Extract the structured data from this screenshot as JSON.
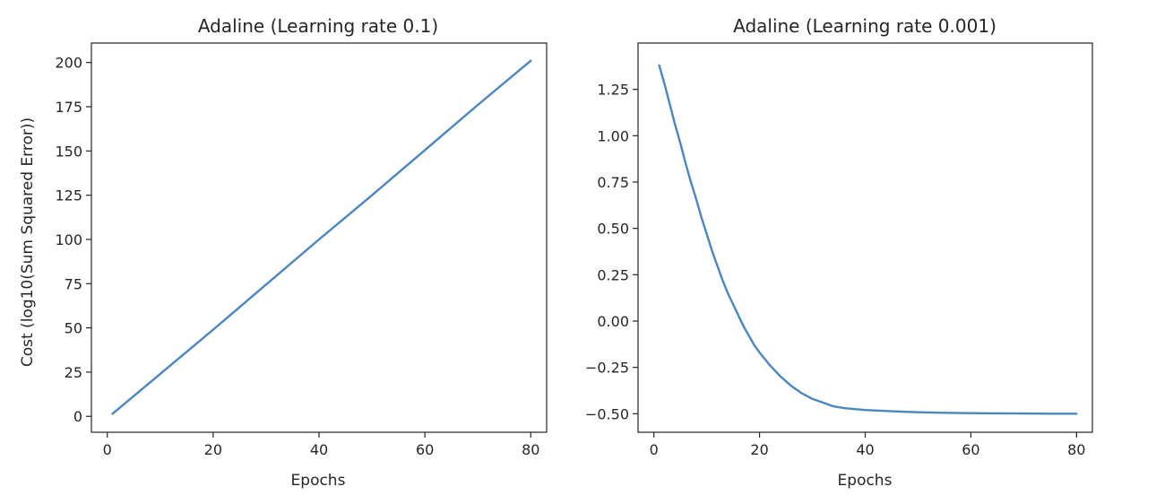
{
  "colors": {
    "series": "#4c86bd",
    "axes": "#262626",
    "background": "#ffffff"
  },
  "chart_data": [
    {
      "type": "line",
      "title": "Adaline (Learning rate 0.1)",
      "xlabel": "Epochs",
      "ylabel": "Cost (log10(Sum Squared Error))",
      "xlim": [
        -3,
        83
      ],
      "ylim": [
        -9,
        211
      ],
      "xticks": [
        0,
        20,
        40,
        60,
        80
      ],
      "yticks": [
        0,
        25,
        50,
        75,
        100,
        125,
        150,
        175,
        200
      ],
      "xtick_labels": [
        "0",
        "20",
        "40",
        "60",
        "80"
      ],
      "ytick_labels": [
        "0",
        "25",
        "50",
        "75",
        "100",
        "125",
        "150",
        "175",
        "200"
      ],
      "grid": false,
      "series": [
        {
          "x": [
            1,
            10,
            20,
            30,
            40,
            50,
            60,
            70,
            80
          ],
          "y": [
            1.5,
            24,
            49,
            74.5,
            100,
            125,
            150.5,
            176,
            201
          ]
        }
      ]
    },
    {
      "type": "line",
      "title": "Adaline (Learning rate 0.001)",
      "xlabel": "Epochs",
      "ylabel": "",
      "xlim": [
        -3,
        83
      ],
      "ylim": [
        -0.6,
        1.5
      ],
      "xticks": [
        0,
        20,
        40,
        60,
        80
      ],
      "yticks": [
        -0.5,
        -0.25,
        0.0,
        0.25,
        0.5,
        0.75,
        1.0,
        1.25
      ],
      "xtick_labels": [
        "0",
        "20",
        "40",
        "60",
        "80"
      ],
      "ytick_labels": [
        "−0.50",
        "−0.25",
        "0.00",
        "0.25",
        "0.50",
        "0.75",
        "1.00",
        "1.25"
      ],
      "grid": false,
      "series": [
        {
          "x": [
            1,
            2,
            3,
            4,
            5,
            6,
            7,
            8,
            9,
            10,
            11,
            12,
            13,
            14,
            15,
            16,
            17,
            18,
            19,
            20,
            22,
            24,
            26,
            28,
            30,
            32,
            34,
            36,
            38,
            40,
            45,
            50,
            55,
            60,
            65,
            70,
            75,
            80
          ],
          "y": [
            1.38,
            1.28,
            1.17,
            1.06,
            0.96,
            0.85,
            0.75,
            0.66,
            0.56,
            0.47,
            0.38,
            0.3,
            0.22,
            0.15,
            0.09,
            0.03,
            -0.03,
            -0.08,
            -0.13,
            -0.17,
            -0.24,
            -0.3,
            -0.35,
            -0.39,
            -0.42,
            -0.44,
            -0.46,
            -0.47,
            -0.475,
            -0.48,
            -0.487,
            -0.492,
            -0.495,
            -0.497,
            -0.498,
            -0.499,
            -0.5,
            -0.5
          ]
        }
      ]
    }
  ]
}
